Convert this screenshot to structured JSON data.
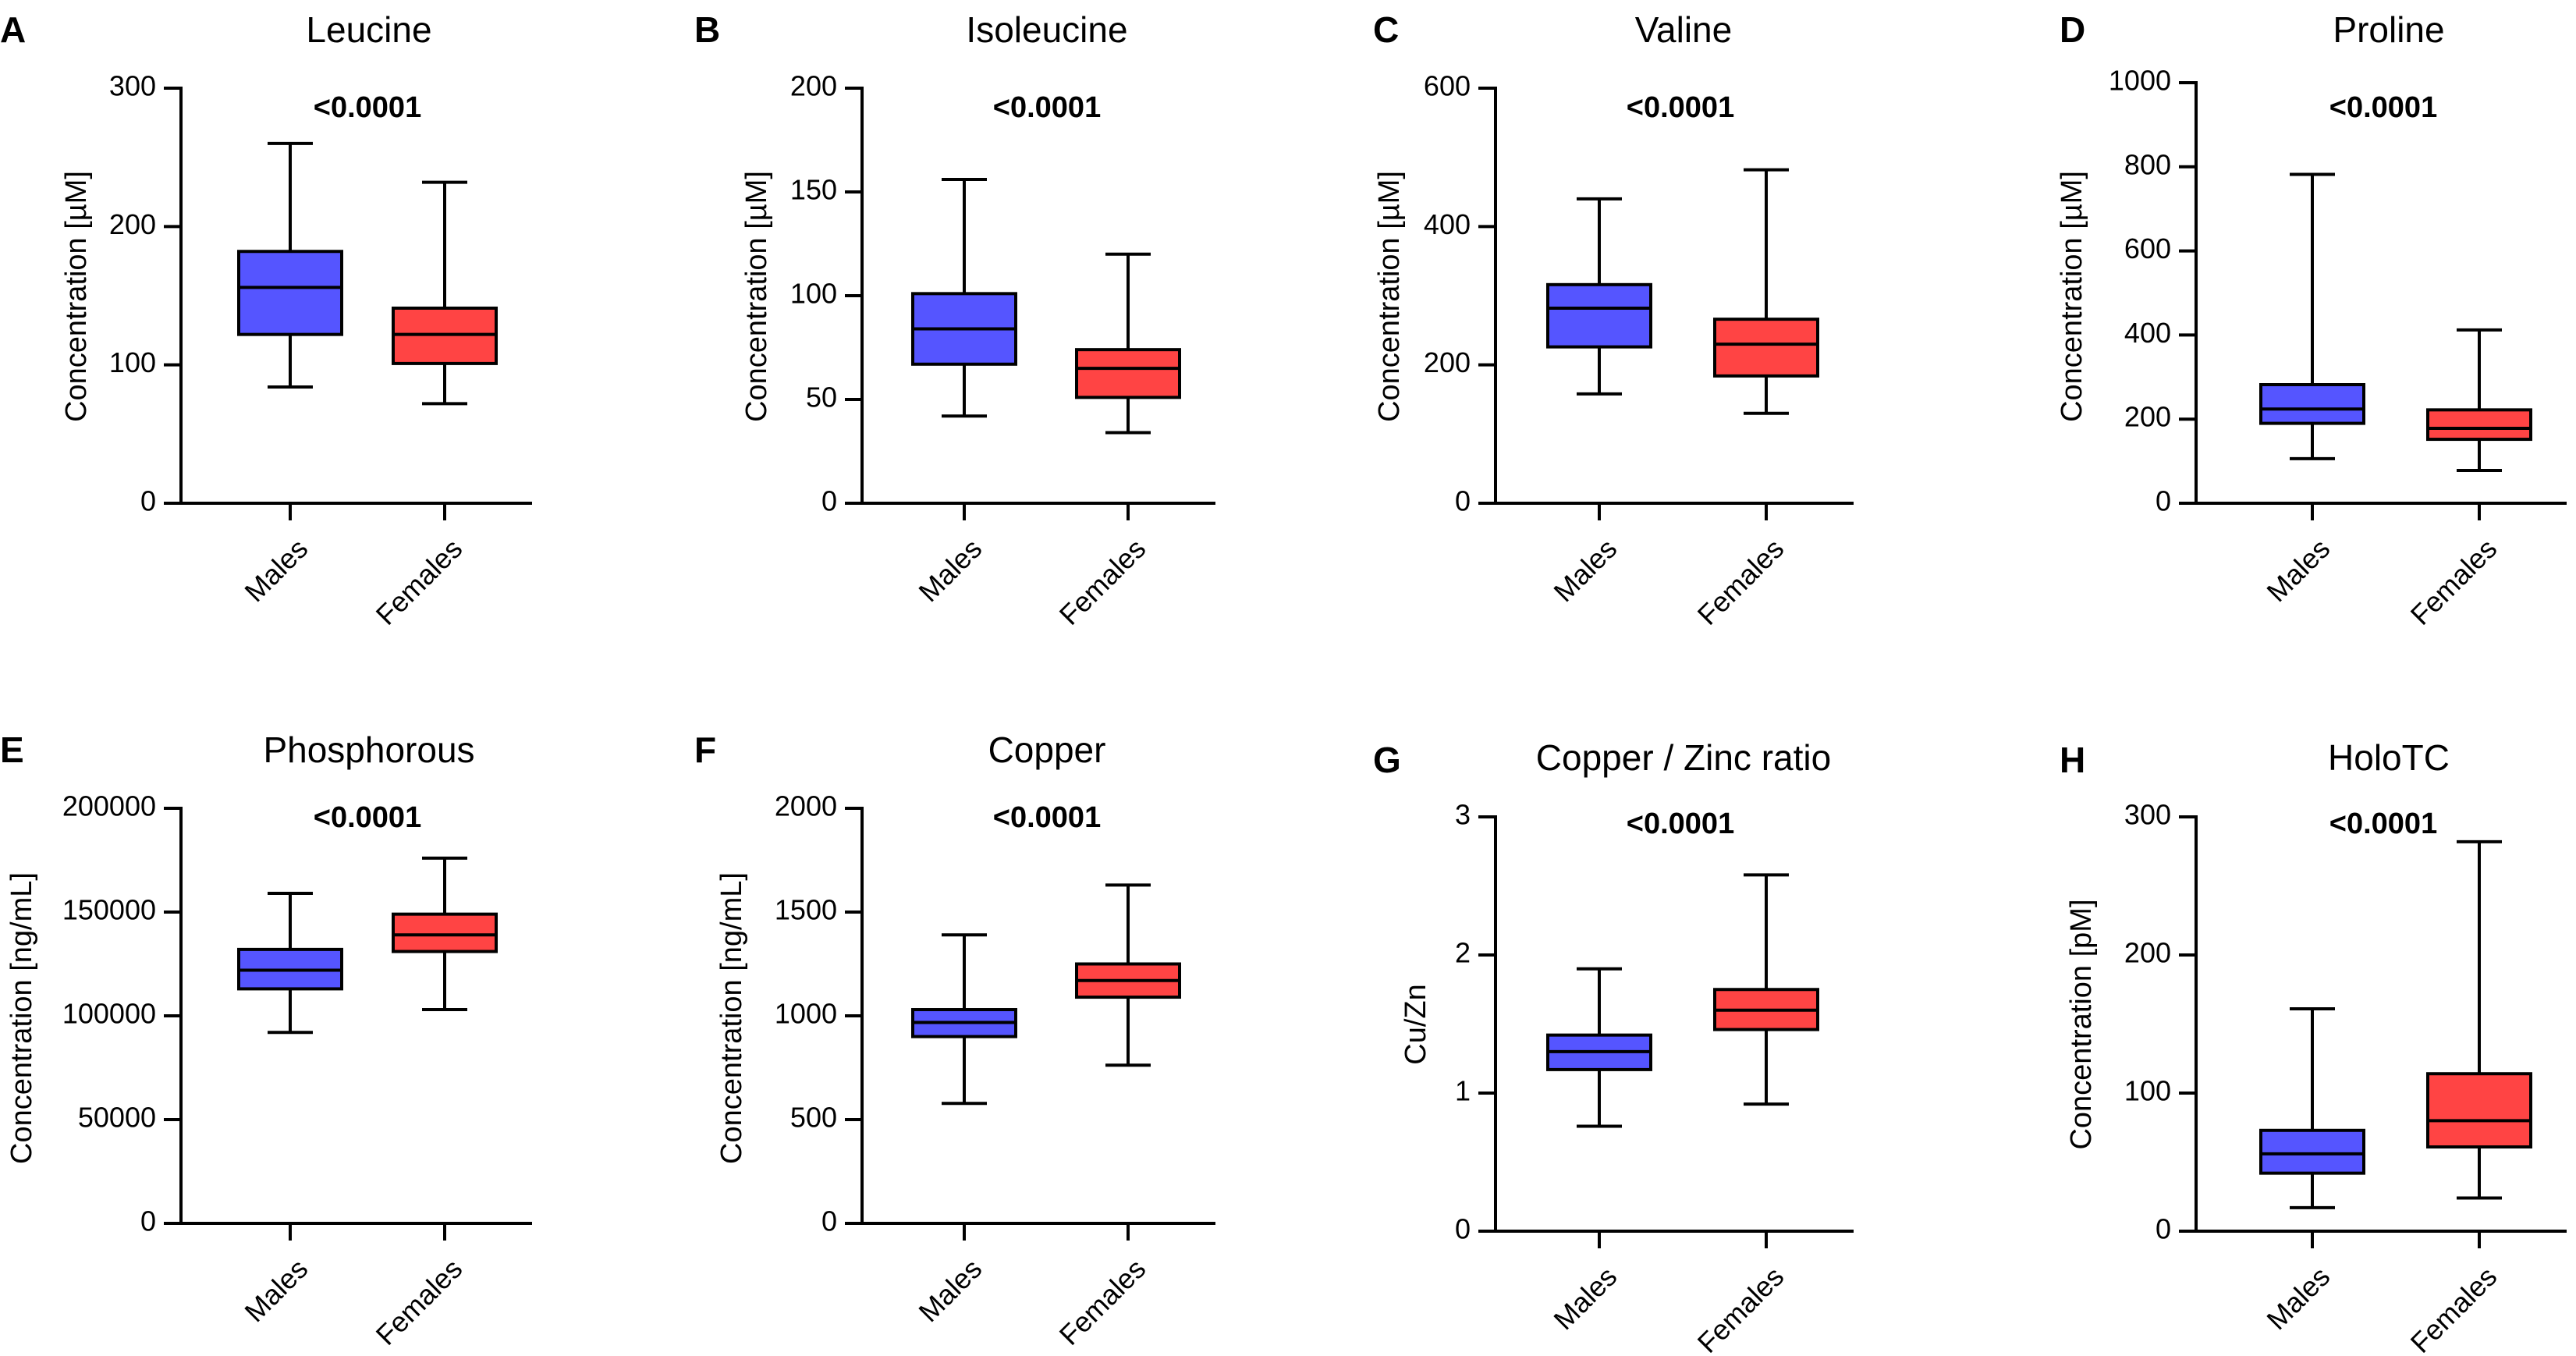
{
  "chart_data": [
    {
      "type": "box",
      "panel": "A",
      "title": "Leucine",
      "ylabel": "Concentration [µM]",
      "ylim": [
        0,
        300
      ],
      "yticks": [
        0,
        100,
        200,
        300
      ],
      "ytick_labels": [
        "0",
        "100",
        "200",
        "300"
      ],
      "annotation": "<0.0001",
      "categories": [
        "Males",
        "Females"
      ],
      "boxes": [
        {
          "name": "Males",
          "color": "#5555ff",
          "min": 84,
          "q1": 122,
          "median": 156,
          "q3": 182,
          "max": 260
        },
        {
          "name": "Females",
          "color": "#ff4444",
          "min": 72,
          "q1": 101,
          "median": 122,
          "q3": 141,
          "max": 232
        }
      ]
    },
    {
      "type": "box",
      "panel": "B",
      "title": "Isoleucine",
      "ylabel": "Concentration [µM]",
      "ylim": [
        0,
        200
      ],
      "yticks": [
        0,
        50,
        100,
        150,
        200
      ],
      "ytick_labels": [
        "0",
        "50",
        "100",
        "150",
        "200"
      ],
      "annotation": "<0.0001",
      "categories": [
        "Males",
        "Females"
      ],
      "boxes": [
        {
          "name": "Males",
          "color": "#5555ff",
          "min": 42,
          "q1": 67,
          "median": 84,
          "q3": 101,
          "max": 156
        },
        {
          "name": "Females",
          "color": "#ff4444",
          "min": 34,
          "q1": 51,
          "median": 65,
          "q3": 74,
          "max": 120
        }
      ]
    },
    {
      "type": "box",
      "panel": "C",
      "title": "Valine",
      "ylabel": "Concentration [µM]",
      "ylim": [
        0,
        600
      ],
      "yticks": [
        0,
        200,
        400,
        600
      ],
      "ytick_labels": [
        "0",
        "200",
        "400",
        "600"
      ],
      "annotation": "<0.0001",
      "categories": [
        "Males",
        "Females"
      ],
      "boxes": [
        {
          "name": "Males",
          "color": "#5555ff",
          "min": 158,
          "q1": 226,
          "median": 282,
          "q3": 316,
          "max": 440
        },
        {
          "name": "Females",
          "color": "#ff4444",
          "min": 130,
          "q1": 184,
          "median": 230,
          "q3": 266,
          "max": 482
        }
      ]
    },
    {
      "type": "box",
      "panel": "D",
      "title": "Proline",
      "ylabel": "Concentration [µM]",
      "ylim": [
        0,
        1000
      ],
      "yticks": [
        0,
        200,
        400,
        600,
        800,
        1000
      ],
      "ytick_labels": [
        "0",
        "200",
        "400",
        "600",
        "800",
        "1000"
      ],
      "annotation": "<0.0001",
      "categories": [
        "Males",
        "Females"
      ],
      "boxes": [
        {
          "name": "Males",
          "color": "#5555ff",
          "min": 106,
          "q1": 190,
          "median": 224,
          "q3": 282,
          "max": 782
        },
        {
          "name": "Females",
          "color": "#ff4444",
          "min": 78,
          "q1": 152,
          "median": 178,
          "q3": 222,
          "max": 412
        }
      ]
    },
    {
      "type": "box",
      "panel": "E",
      "title": "Phosphorous",
      "ylabel": "Concentration [ng/mL]",
      "ylim": [
        0,
        200000
      ],
      "yticks": [
        0,
        50000,
        100000,
        150000,
        200000
      ],
      "ytick_labels": [
        "0",
        "50000",
        "100000",
        "150000",
        "200000"
      ],
      "annotation": "<0.0001",
      "categories": [
        "Males",
        "Females"
      ],
      "boxes": [
        {
          "name": "Males",
          "color": "#5555ff",
          "min": 92000,
          "q1": 113000,
          "median": 122000,
          "q3": 132000,
          "max": 159000
        },
        {
          "name": "Females",
          "color": "#ff4444",
          "min": 103000,
          "q1": 131000,
          "median": 139000,
          "q3": 149000,
          "max": 176000
        }
      ]
    },
    {
      "type": "box",
      "panel": "F",
      "title": "Copper",
      "ylabel": "Concentration [ng/mL]",
      "ylim": [
        0,
        2000
      ],
      "yticks": [
        0,
        500,
        1000,
        1500,
        2000
      ],
      "ytick_labels": [
        "0",
        "500",
        "1000",
        "1500",
        "2000"
      ],
      "annotation": "<0.0001",
      "categories": [
        "Males",
        "Females"
      ],
      "boxes": [
        {
          "name": "Males",
          "color": "#5555ff",
          "min": 578,
          "q1": 900,
          "median": 968,
          "q3": 1030,
          "max": 1390
        },
        {
          "name": "Females",
          "color": "#ff4444",
          "min": 762,
          "q1": 1090,
          "median": 1170,
          "q3": 1250,
          "max": 1630
        }
      ]
    },
    {
      "type": "box",
      "panel": "G",
      "title": "Copper / Zinc ratio",
      "ylabel": "Cu/Zn",
      "ylim": [
        0,
        3
      ],
      "yticks": [
        0,
        1,
        2,
        3
      ],
      "ytick_labels": [
        "0",
        "1",
        "2",
        "3"
      ],
      "annotation": "<0.0001",
      "categories": [
        "Males",
        "Females"
      ],
      "boxes": [
        {
          "name": "Males",
          "color": "#5555ff",
          "min": 0.76,
          "q1": 1.17,
          "median": 1.3,
          "q3": 1.42,
          "max": 1.9
        },
        {
          "name": "Females",
          "color": "#ff4444",
          "min": 0.92,
          "q1": 1.46,
          "median": 1.6,
          "q3": 1.75,
          "max": 2.58
        }
      ]
    },
    {
      "type": "box",
      "panel": "H",
      "title": "HoloTC",
      "ylabel": "Concentration [pM]",
      "ylim": [
        0,
        300
      ],
      "yticks": [
        0,
        100,
        200,
        300
      ],
      "ytick_labels": [
        "0",
        "100",
        "200",
        "300"
      ],
      "annotation": "<0.0001",
      "categories": [
        "Males",
        "Females"
      ],
      "boxes": [
        {
          "name": "Males",
          "color": "#5555ff",
          "min": 17,
          "q1": 42,
          "median": 56,
          "q3": 73,
          "max": 161
        },
        {
          "name": "Females",
          "color": "#ff4444",
          "min": 24,
          "q1": 61,
          "median": 80,
          "q3": 114,
          "max": 282
        }
      ]
    }
  ]
}
